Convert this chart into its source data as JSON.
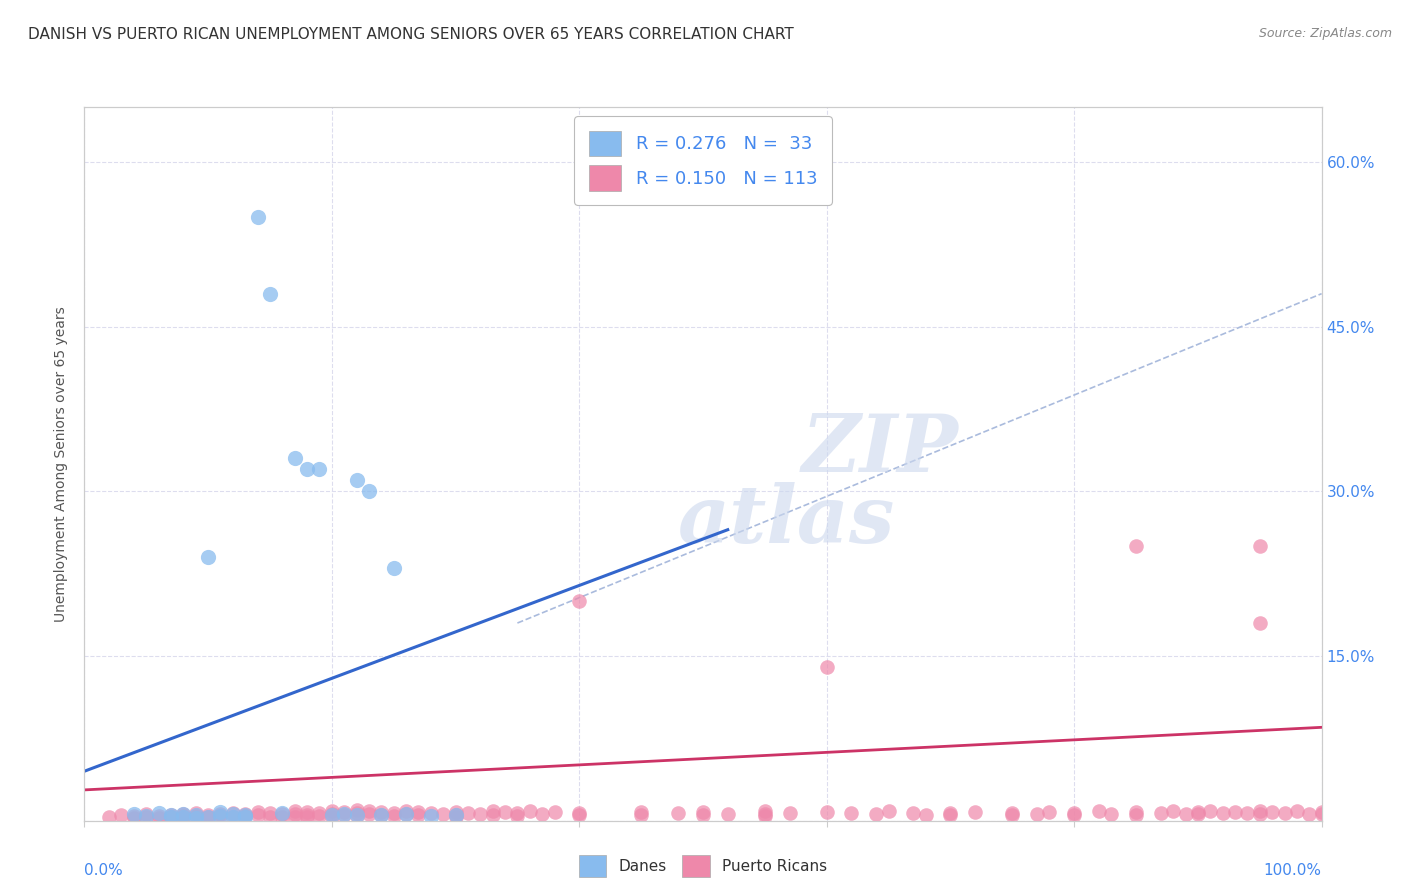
{
  "title": "DANISH VS PUERTO RICAN UNEMPLOYMENT AMONG SENIORS OVER 65 YEARS CORRELATION CHART",
  "source": "Source: ZipAtlas.com",
  "ylabel": "Unemployment Among Seniors over 65 years",
  "xlim": [
    0,
    1.0
  ],
  "ylim": [
    0,
    0.65
  ],
  "xticks": [
    0.0,
    0.2,
    0.4,
    0.6,
    0.8,
    1.0
  ],
  "xticklabels": [
    "",
    "",
    "",
    "",
    "",
    ""
  ],
  "yticks": [
    0.0,
    0.15,
    0.3,
    0.45,
    0.6
  ],
  "yticklabels_right": [
    "",
    "15.0%",
    "30.0%",
    "45.0%",
    "60.0%"
  ],
  "tick_color": "#4488ee",
  "danes_color": "#88bbee",
  "danes_edge_color": "#88bbee",
  "puerto_ricans_color": "#ee88aa",
  "puerto_ricans_edge_color": "#ee88aa",
  "danes_line_color": "#3366cc",
  "puerto_ricans_line_color": "#cc3366",
  "dash_line_color": "#aabbdd",
  "grid_color": "#ddddee",
  "danes_line_x": [
    0.0,
    0.52
  ],
  "danes_line_y": [
    0.045,
    0.265
  ],
  "puerto_ricans_line_x": [
    0.0,
    1.0
  ],
  "puerto_ricans_line_y": [
    0.028,
    0.085
  ],
  "dash_line_x": [
    0.35,
    1.0
  ],
  "dash_line_y": [
    0.18,
    0.48
  ],
  "watermark_zip": "ZIP",
  "watermark_atlas": "atlas",
  "danes_scatter": [
    [
      0.04,
      0.006
    ],
    [
      0.05,
      0.004
    ],
    [
      0.06,
      0.007
    ],
    [
      0.07,
      0.005
    ],
    [
      0.07,
      0.003
    ],
    [
      0.08,
      0.006
    ],
    [
      0.08,
      0.003
    ],
    [
      0.09,
      0.005
    ],
    [
      0.09,
      0.002
    ],
    [
      0.1,
      0.003
    ],
    [
      0.1,
      0.24
    ],
    [
      0.11,
      0.008
    ],
    [
      0.11,
      0.004
    ],
    [
      0.12,
      0.006
    ],
    [
      0.12,
      0.003
    ],
    [
      0.13,
      0.005
    ],
    [
      0.13,
      0.003
    ],
    [
      0.14,
      0.55
    ],
    [
      0.15,
      0.48
    ],
    [
      0.16,
      0.007
    ],
    [
      0.17,
      0.33
    ],
    [
      0.18,
      0.32
    ],
    [
      0.19,
      0.32
    ],
    [
      0.2,
      0.005
    ],
    [
      0.21,
      0.006
    ],
    [
      0.22,
      0.005
    ],
    [
      0.22,
      0.31
    ],
    [
      0.23,
      0.3
    ],
    [
      0.24,
      0.005
    ],
    [
      0.25,
      0.23
    ],
    [
      0.26,
      0.006
    ],
    [
      0.28,
      0.004
    ],
    [
      0.3,
      0.005
    ]
  ],
  "puerto_ricans_scatter": [
    [
      0.02,
      0.003
    ],
    [
      0.03,
      0.005
    ],
    [
      0.04,
      0.004
    ],
    [
      0.04,
      0.002
    ],
    [
      0.05,
      0.006
    ],
    [
      0.05,
      0.003
    ],
    [
      0.06,
      0.004
    ],
    [
      0.06,
      0.002
    ],
    [
      0.07,
      0.005
    ],
    [
      0.07,
      0.003
    ],
    [
      0.08,
      0.006
    ],
    [
      0.08,
      0.004
    ],
    [
      0.08,
      0.002
    ],
    [
      0.09,
      0.007
    ],
    [
      0.09,
      0.004
    ],
    [
      0.1,
      0.005
    ],
    [
      0.1,
      0.003
    ],
    [
      0.11,
      0.006
    ],
    [
      0.11,
      0.004
    ],
    [
      0.12,
      0.007
    ],
    [
      0.12,
      0.003
    ],
    [
      0.13,
      0.006
    ],
    [
      0.13,
      0.004
    ],
    [
      0.14,
      0.008
    ],
    [
      0.14,
      0.005
    ],
    [
      0.15,
      0.007
    ],
    [
      0.15,
      0.003
    ],
    [
      0.16,
      0.006
    ],
    [
      0.16,
      0.003
    ],
    [
      0.17,
      0.009
    ],
    [
      0.17,
      0.006
    ],
    [
      0.17,
      0.003
    ],
    [
      0.18,
      0.008
    ],
    [
      0.18,
      0.005
    ],
    [
      0.18,
      0.003
    ],
    [
      0.19,
      0.007
    ],
    [
      0.19,
      0.004
    ],
    [
      0.2,
      0.009
    ],
    [
      0.2,
      0.006
    ],
    [
      0.2,
      0.003
    ],
    [
      0.21,
      0.008
    ],
    [
      0.21,
      0.005
    ],
    [
      0.22,
      0.01
    ],
    [
      0.22,
      0.007
    ],
    [
      0.22,
      0.004
    ],
    [
      0.23,
      0.009
    ],
    [
      0.23,
      0.006
    ],
    [
      0.24,
      0.008
    ],
    [
      0.24,
      0.005
    ],
    [
      0.25,
      0.007
    ],
    [
      0.25,
      0.004
    ],
    [
      0.26,
      0.009
    ],
    [
      0.26,
      0.006
    ],
    [
      0.27,
      0.008
    ],
    [
      0.27,
      0.005
    ],
    [
      0.28,
      0.007
    ],
    [
      0.29,
      0.006
    ],
    [
      0.3,
      0.008
    ],
    [
      0.3,
      0.005
    ],
    [
      0.3,
      0.003
    ],
    [
      0.31,
      0.007
    ],
    [
      0.32,
      0.006
    ],
    [
      0.33,
      0.009
    ],
    [
      0.33,
      0.005
    ],
    [
      0.34,
      0.008
    ],
    [
      0.35,
      0.007
    ],
    [
      0.35,
      0.004
    ],
    [
      0.36,
      0.009
    ],
    [
      0.37,
      0.006
    ],
    [
      0.38,
      0.008
    ],
    [
      0.4,
      0.2
    ],
    [
      0.4,
      0.007
    ],
    [
      0.4,
      0.005
    ],
    [
      0.45,
      0.008
    ],
    [
      0.45,
      0.005
    ],
    [
      0.48,
      0.007
    ],
    [
      0.5,
      0.008
    ],
    [
      0.5,
      0.005
    ],
    [
      0.52,
      0.006
    ],
    [
      0.55,
      0.009
    ],
    [
      0.55,
      0.006
    ],
    [
      0.55,
      0.004
    ],
    [
      0.57,
      0.007
    ],
    [
      0.6,
      0.14
    ],
    [
      0.6,
      0.008
    ],
    [
      0.62,
      0.007
    ],
    [
      0.64,
      0.006
    ],
    [
      0.65,
      0.009
    ],
    [
      0.67,
      0.007
    ],
    [
      0.68,
      0.005
    ],
    [
      0.7,
      0.007
    ],
    [
      0.7,
      0.005
    ],
    [
      0.72,
      0.008
    ],
    [
      0.75,
      0.007
    ],
    [
      0.75,
      0.005
    ],
    [
      0.77,
      0.006
    ],
    [
      0.78,
      0.008
    ],
    [
      0.8,
      0.007
    ],
    [
      0.8,
      0.005
    ],
    [
      0.82,
      0.009
    ],
    [
      0.83,
      0.006
    ],
    [
      0.85,
      0.008
    ],
    [
      0.85,
      0.005
    ],
    [
      0.87,
      0.007
    ],
    [
      0.88,
      0.009
    ],
    [
      0.89,
      0.006
    ],
    [
      0.9,
      0.008
    ],
    [
      0.9,
      0.006
    ],
    [
      0.91,
      0.009
    ],
    [
      0.92,
      0.007
    ],
    [
      0.93,
      0.008
    ],
    [
      0.94,
      0.007
    ],
    [
      0.95,
      0.009
    ],
    [
      0.95,
      0.006
    ],
    [
      0.96,
      0.008
    ],
    [
      0.97,
      0.007
    ],
    [
      0.98,
      0.009
    ],
    [
      0.99,
      0.006
    ],
    [
      1.0,
      0.008
    ],
    [
      1.0,
      0.006
    ],
    [
      0.85,
      0.25
    ],
    [
      0.95,
      0.25
    ],
    [
      0.95,
      0.18
    ]
  ]
}
